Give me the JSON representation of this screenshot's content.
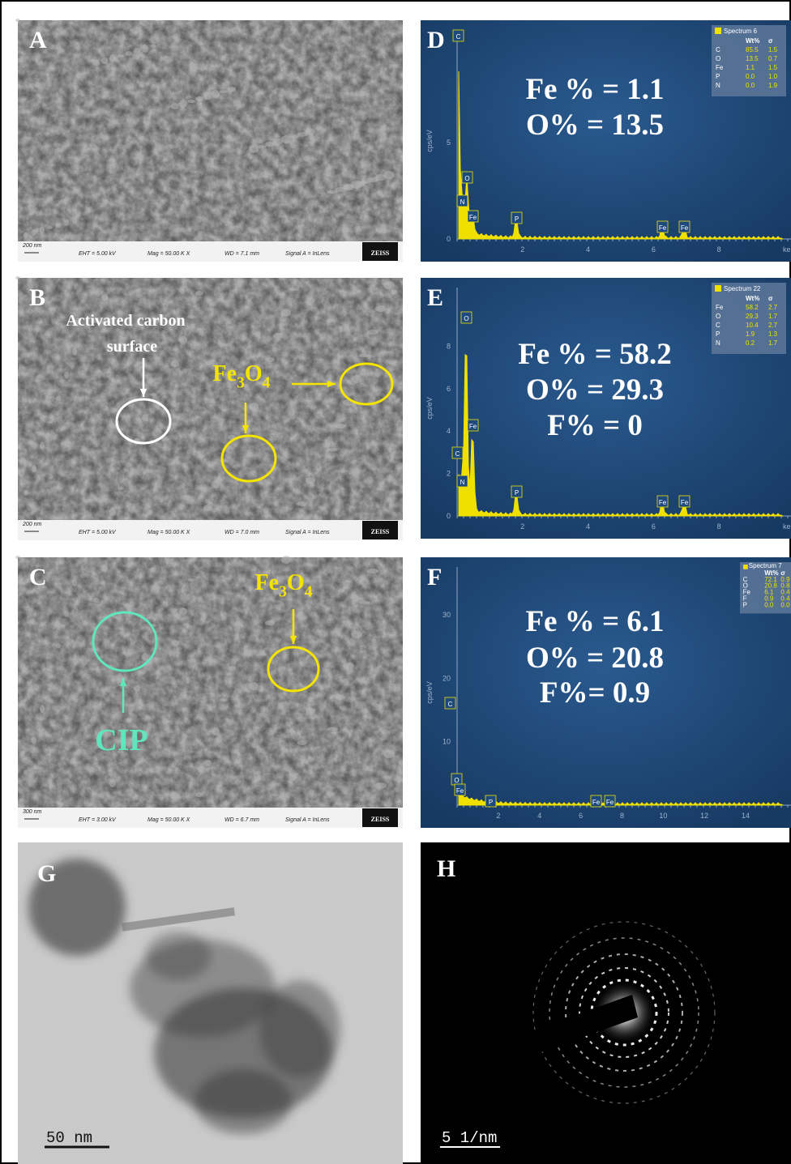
{
  "sem": [
    {
      "label": "A",
      "scale": "200 nm",
      "info": [
        "EHT = 5.00 kV",
        "Mag =  50.00 K X",
        "WD = 7.1 mm",
        "Signal A = InLens"
      ],
      "logo": "ZEISS",
      "annotations": []
    },
    {
      "label": "B",
      "scale": "200 nm",
      "info": [
        "EHT = 5.00 kV",
        "Mag =  50.00 K X",
        "WD = 7.0 mm",
        "Signal A = InLens"
      ],
      "logo": "ZEISS",
      "annotations": [
        {
          "parts": [
            "Activated carbon"
          ]
        },
        {
          "parts": [
            "surface"
          ]
        },
        {
          "parts": [
            "Fe",
            "3",
            "O",
            "4"
          ]
        }
      ]
    },
    {
      "label": "C",
      "scale": "300 nm",
      "info": [
        "EHT = 3.00 kV",
        "Mag =  50.00 K X",
        "WD = 6.7 mm",
        "Signal A = InLens"
      ],
      "logo": "ZEISS",
      "annotations": [
        {
          "parts": [
            "Fe",
            "3",
            "O",
            "4"
          ]
        },
        {
          "parts": [
            "CIP"
          ]
        }
      ]
    }
  ],
  "eds": [
    {
      "label": "D",
      "spectrum": "Spectrum 6",
      "header": [
        "Wt%",
        "σ"
      ],
      "rows": [
        [
          "C",
          "85.5",
          "1.5"
        ],
        [
          "O",
          "13.5",
          "0.7"
        ],
        [
          "Fe",
          "1.1",
          "1.5"
        ],
        [
          "P",
          "0.0",
          "1.0"
        ],
        [
          "N",
          "0.0",
          "1.9"
        ]
      ],
      "composition": [
        "Fe % = 1.1",
        "O% = 13.5"
      ],
      "y_label": "cps/eV",
      "yticks": [
        "0",
        "5"
      ],
      "xticks": [
        "2",
        "4",
        "6",
        "8"
      ],
      "x_unit": "ke",
      "peaks": [
        "C",
        "O",
        "N",
        "Fe",
        "P",
        "Fe",
        "Fe"
      ]
    },
    {
      "label": "E",
      "spectrum": "Spectrum 22",
      "header": [
        "Wt%",
        "σ"
      ],
      "rows": [
        [
          "Fe",
          "58.2",
          "2.7"
        ],
        [
          "O",
          "29.3",
          "1.7"
        ],
        [
          "C",
          "10.4",
          "2.7"
        ],
        [
          "P",
          "1.9",
          "1.3"
        ],
        [
          "N",
          "0.2",
          "1.7"
        ]
      ],
      "composition": [
        "Fe % = 58.2",
        "O% = 29.3",
        "F% = 0"
      ],
      "y_label": "cps/eV",
      "yticks": [
        "0",
        "2",
        "4",
        "6",
        "8"
      ],
      "xticks": [
        "2",
        "4",
        "6",
        "8"
      ],
      "x_unit": "ke",
      "peaks": [
        "O",
        "Fe",
        "C",
        "N",
        "P",
        "Fe",
        "Fe"
      ]
    },
    {
      "label": "F",
      "spectrum": "Spectrum 7",
      "header": [
        "Wt%",
        "σ"
      ],
      "rows": [
        [
          "C",
          "72.1",
          "0.9"
        ],
        [
          "O",
          "20.8",
          "0.8"
        ],
        [
          "Fe",
          "6.1",
          "0.4"
        ],
        [
          "F",
          "0.9",
          "0.4"
        ],
        [
          "P",
          "0.0",
          "0.0"
        ]
      ],
      "composition": [
        "Fe % = 6.1",
        "O% = 20.8",
        "F%= 0.9"
      ],
      "y_label": "cps/eV",
      "yticks": [
        "10",
        "20",
        "30"
      ],
      "xticks": [
        "2",
        "4",
        "6",
        "8",
        "10",
        "12",
        "14"
      ],
      "x_unit": "",
      "peaks": [
        "C",
        "O",
        "Fe",
        "P",
        "Fe",
        "Fe"
      ]
    }
  ],
  "tem": [
    {
      "label": "G",
      "scale": "50 nm"
    },
    {
      "label": "H",
      "scale": "5 1/nm"
    }
  ]
}
